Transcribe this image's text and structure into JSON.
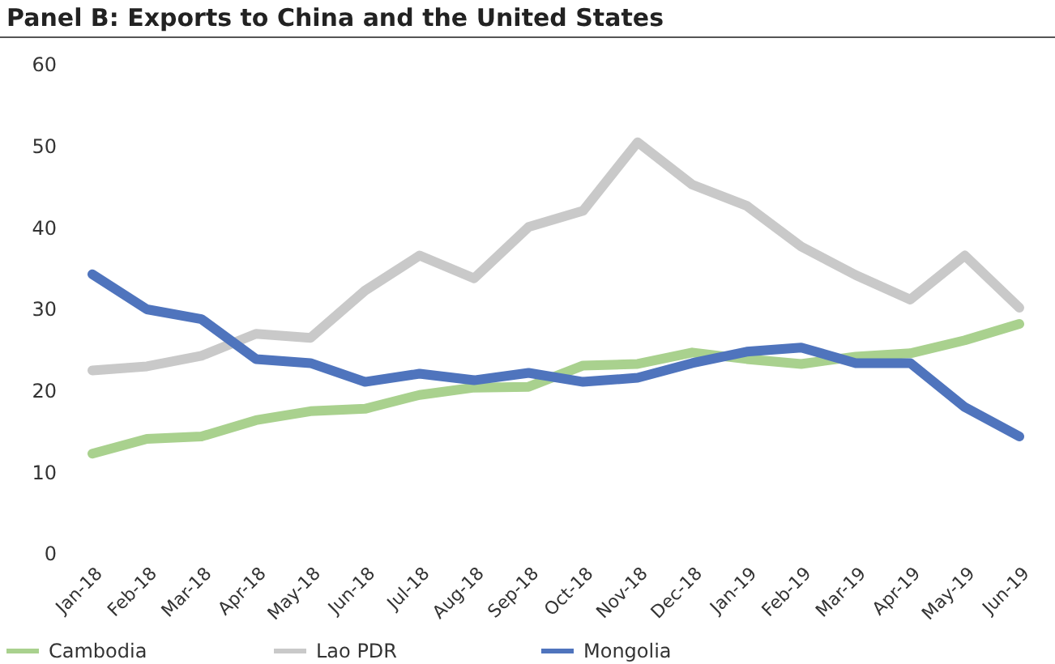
{
  "chart_data": {
    "type": "line",
    "title": "Panel B: Exports to China and the United States",
    "categories": [
      "Jan-18",
      "Feb-18",
      "Mar-18",
      "Apr-18",
      "May-18",
      "Jun-18",
      "Jul-18",
      "Aug-18",
      "Sep-18",
      "Oct-18",
      "Nov-18",
      "Dec-18",
      "Jan-19",
      "Feb-19",
      "Mar-19",
      "Apr-19",
      "May-19",
      "Jun-19"
    ],
    "series": [
      {
        "name": "Cambodia",
        "color": "#a9d18e",
        "values": [
          12.3,
          14.1,
          14.4,
          16.4,
          17.5,
          17.8,
          19.5,
          20.4,
          20.5,
          23.1,
          23.3,
          24.7,
          23.9,
          23.3,
          24.2,
          24.6,
          26.2,
          28.2
        ]
      },
      {
        "name": "Lao PDR",
        "color": "#c9c9c9",
        "values": [
          22.5,
          23.0,
          24.3,
          27.0,
          26.5,
          32.3,
          36.6,
          33.8,
          40.1,
          42.1,
          50.5,
          45.3,
          42.7,
          37.7,
          34.2,
          31.2,
          36.6,
          30.2
        ]
      },
      {
        "name": "Mongolia",
        "color": "#4f74bd",
        "values": [
          34.3,
          30.0,
          28.8,
          23.9,
          23.4,
          21.1,
          22.1,
          21.3,
          22.2,
          21.1,
          21.6,
          23.4,
          24.8,
          25.3,
          23.4,
          23.4,
          18.0,
          14.4
        ]
      }
    ],
    "ylim": [
      0,
      60
    ],
    "yticks": [
      0,
      10,
      20,
      30,
      40,
      50,
      60
    ],
    "grid": false,
    "legend": "bottom",
    "marker": "none",
    "line_style": "solid"
  }
}
